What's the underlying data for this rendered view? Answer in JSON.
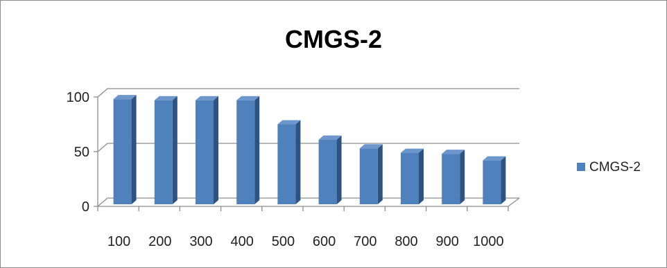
{
  "chart_data": {
    "type": "bar",
    "title": "CMGS-2",
    "categories": [
      "100",
      "200",
      "300",
      "400",
      "500",
      "600",
      "700",
      "800",
      "900",
      "1000"
    ],
    "series": [
      {
        "name": "CMGS-2",
        "values": [
          98,
          97,
          97,
          97,
          75,
          61,
          53,
          49,
          48,
          42
        ],
        "color": "#4f81bd"
      }
    ],
    "ylim": [
      0,
      100
    ],
    "yticks": [
      0,
      50,
      100
    ],
    "xlabel": "",
    "ylabel": "",
    "grid": true,
    "legend_position": "right",
    "style": "3d-column"
  }
}
